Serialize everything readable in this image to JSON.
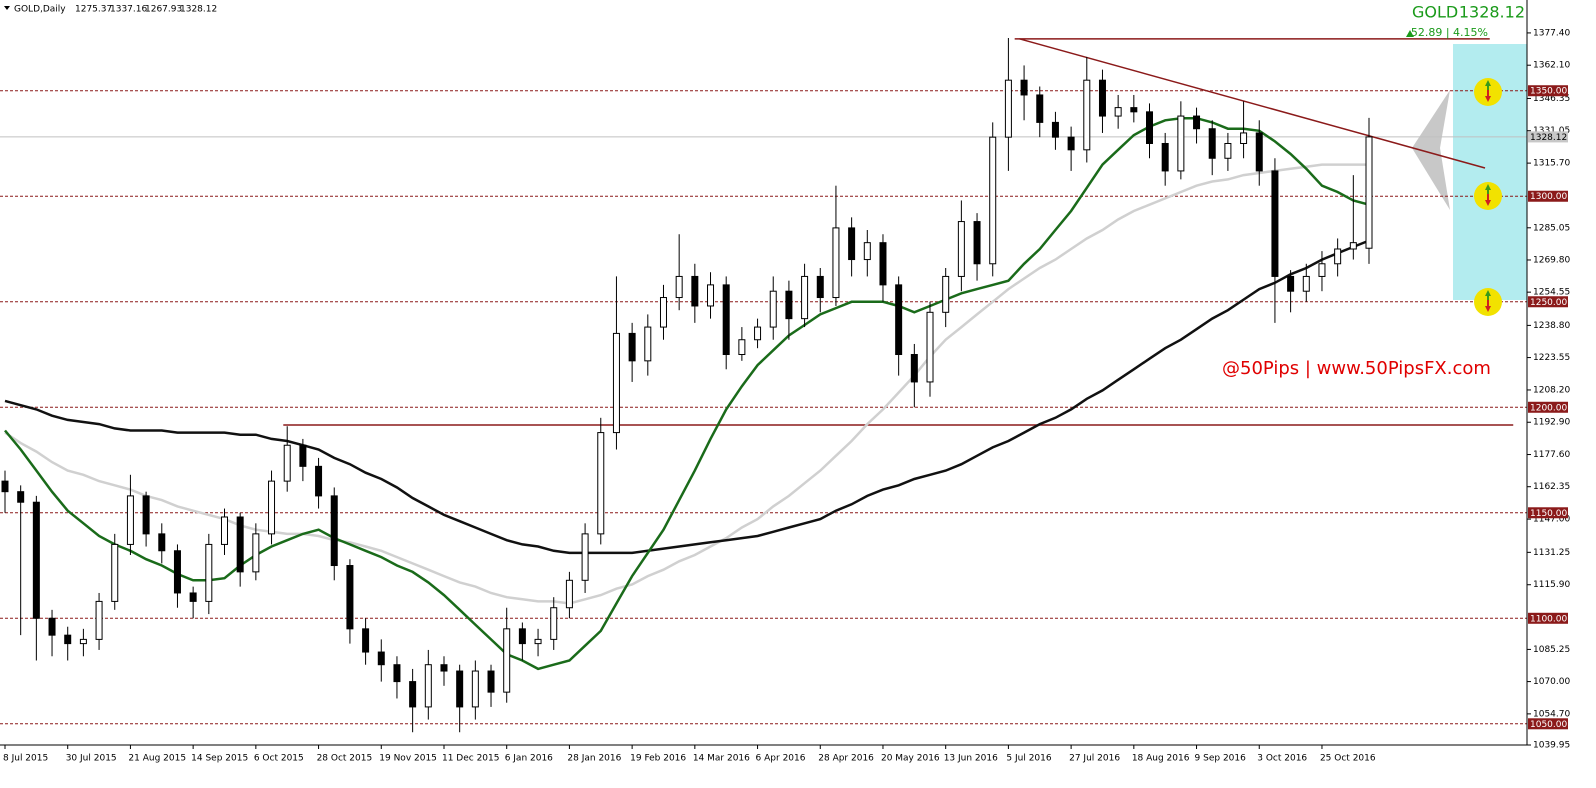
{
  "header": {
    "symbol_timeframe": "GOLD,Daily"
  },
  "quote": {
    "symbol": "GOLD",
    "change_line": "52.89 | 4.15%"
  },
  "watermark": "@50Pips | www.50PipsFX.com",
  "chart_data": {
    "type": "candlestick",
    "categories": [
      "8 Jul 2015",
      null,
      null,
      null,
      "30 Jul 2015",
      null,
      null,
      null,
      "21 Aug 2015",
      null,
      null,
      null,
      "14 Sep 2015",
      null,
      null,
      null,
      "6 Oct 2015",
      null,
      null,
      null,
      "28 Oct 2015",
      null,
      null,
      null,
      "19 Nov 2015",
      null,
      null,
      null,
      "11 Dec 2015",
      null,
      null,
      null,
      "6 Jan 2016",
      null,
      null,
      null,
      "28 Jan 2016",
      null,
      null,
      null,
      "19 Feb 2016",
      null,
      null,
      null,
      "14 Mar 2016",
      null,
      null,
      null,
      "6 Apr 2016",
      null,
      null,
      null,
      "28 Apr 2016",
      null,
      null,
      null,
      "20 May 2016",
      null,
      null,
      null,
      "13 Jun 2016",
      null,
      null,
      null,
      "5 Jul 2016",
      null,
      null,
      null,
      "27 Jul 2016",
      null,
      null,
      null,
      "18 Aug 2016",
      null,
      null,
      null,
      "9 Sep 2016",
      null,
      null,
      null,
      "3 Oct 2016",
      null,
      null,
      null,
      "25 Oct 2016",
      null,
      null,
      null
    ],
    "open": [
      1165,
      1160,
      1155,
      1100,
      1092,
      1088,
      1090,
      1108,
      1135,
      1158,
      1140,
      1132,
      1112,
      1108,
      1135,
      1148,
      1122,
      1140,
      1165,
      1182,
      1172,
      1158,
      1125,
      1095,
      1084,
      1078,
      1070,
      1058,
      1078,
      1075,
      1058,
      1075,
      1065,
      1095,
      1088,
      1090,
      1105,
      1118,
      1140,
      1188,
      1235,
      1222,
      1238,
      1252,
      1262,
      1248,
      1258,
      1225,
      1232,
      1238,
      1255,
      1242,
      1262,
      1252,
      1285,
      1270,
      1278,
      1258,
      1225,
      1212,
      1245,
      1262,
      1288,
      1268,
      1328,
      1355,
      1348,
      1335,
      1328,
      1322,
      1355,
      1338,
      1342,
      1340,
      1325,
      1312,
      1338,
      1332,
      1318,
      1325,
      1330,
      1312,
      1262,
      1255,
      1262,
      1268,
      1275,
      1275.37
    ],
    "high": [
      1170,
      1163,
      1158,
      1104,
      1096,
      1095,
      1112,
      1140,
      1168,
      1160,
      1145,
      1135,
      1115,
      1140,
      1152,
      1150,
      1145,
      1170,
      1191,
      1185,
      1176,
      1162,
      1128,
      1100,
      1090,
      1082,
      1076,
      1085,
      1082,
      1078,
      1080,
      1078,
      1105,
      1098,
      1095,
      1110,
      1122,
      1145,
      1195,
      1262,
      1240,
      1244,
      1258,
      1282,
      1268,
      1264,
      1262,
      1238,
      1242,
      1262,
      1260,
      1268,
      1266,
      1305,
      1290,
      1284,
      1282,
      1262,
      1230,
      1250,
      1266,
      1298,
      1292,
      1335,
      1375,
      1362,
      1352,
      1340,
      1333,
      1366,
      1360,
      1348,
      1348,
      1344,
      1330,
      1345,
      1342,
      1336,
      1330,
      1345,
      1336,
      1318,
      1265,
      1268,
      1274,
      1280,
      1310,
      1337.16
    ],
    "low": [
      1150,
      1092,
      1080,
      1082,
      1080,
      1082,
      1085,
      1104,
      1130,
      1134,
      1126,
      1105,
      1100,
      1102,
      1130,
      1115,
      1118,
      1135,
      1160,
      1165,
      1152,
      1118,
      1088,
      1078,
      1070,
      1062,
      1046,
      1052,
      1068,
      1046,
      1052,
      1058,
      1060,
      1080,
      1082,
      1085,
      1100,
      1112,
      1135,
      1180,
      1212,
      1215,
      1232,
      1246,
      1240,
      1242,
      1218,
      1222,
      1228,
      1232,
      1232,
      1238,
      1245,
      1248,
      1262,
      1262,
      1250,
      1215,
      1200,
      1205,
      1238,
      1255,
      1260,
      1262,
      1312,
      1336,
      1328,
      1322,
      1312,
      1316,
      1330,
      1332,
      1335,
      1318,
      1305,
      1308,
      1325,
      1310,
      1312,
      1318,
      1305,
      1240,
      1245,
      1250,
      1255,
      1262,
      1270,
      1267.93
    ],
    "close": [
      1160,
      1155,
      1100,
      1092,
      1088,
      1090,
      1108,
      1135,
      1158,
      1140,
      1132,
      1112,
      1108,
      1135,
      1148,
      1122,
      1140,
      1165,
      1182,
      1172,
      1158,
      1125,
      1095,
      1084,
      1078,
      1070,
      1058,
      1078,
      1075,
      1058,
      1075,
      1065,
      1095,
      1088,
      1090,
      1105,
      1118,
      1140,
      1188,
      1235,
      1222,
      1238,
      1252,
      1262,
      1248,
      1258,
      1225,
      1232,
      1238,
      1255,
      1242,
      1262,
      1252,
      1285,
      1270,
      1278,
      1258,
      1225,
      1212,
      1245,
      1262,
      1288,
      1268,
      1328,
      1355,
      1348,
      1335,
      1328,
      1322,
      1355,
      1338,
      1342,
      1340,
      1325,
      1312,
      1338,
      1332,
      1318,
      1325,
      1330,
      1312,
      1262,
      1255,
      1262,
      1268,
      1275,
      1278,
      1328.12
    ],
    "moving_averages": [
      {
        "color": "#d0d0d0",
        "values": [
          1188,
          1183,
          1179,
          1174,
          1170,
          1168,
          1165,
          1163,
          1161,
          1158,
          1156,
          1153,
          1151,
          1149,
          1147,
          1144,
          1142,
          1141,
          1140,
          1140,
          1139,
          1137,
          1136,
          1134,
          1132,
          1129,
          1126,
          1123,
          1120,
          1117,
          1115,
          1112,
          1110,
          1109,
          1108,
          1108,
          1107,
          1109,
          1111,
          1114,
          1116,
          1120,
          1123,
          1127,
          1130,
          1134,
          1138,
          1143,
          1147,
          1153,
          1158,
          1164,
          1170,
          1177,
          1184,
          1192,
          1199,
          1207,
          1215,
          1224,
          1232,
          1238,
          1244,
          1250,
          1256,
          1261,
          1266,
          1270,
          1275,
          1280,
          1284,
          1289,
          1293,
          1296,
          1299,
          1302,
          1305,
          1307,
          1308,
          1310,
          1311,
          1312,
          1313,
          1314,
          1315,
          1315,
          1315,
          1315
        ]
      },
      {
        "color": "#111111",
        "values": [
          1203,
          1201,
          1199,
          1196,
          1194,
          1193,
          1192,
          1190,
          1189,
          1189,
          1189,
          1188,
          1188,
          1188,
          1188,
          1187,
          1187,
          1185,
          1184,
          1182,
          1180,
          1176,
          1173,
          1169,
          1166,
          1162,
          1157,
          1153,
          1149,
          1146,
          1143,
          1140,
          1137,
          1135,
          1134,
          1132,
          1131,
          1131,
          1131,
          1131,
          1131,
          1132,
          1133,
          1134,
          1135,
          1136,
          1137,
          1138,
          1139,
          1141,
          1143,
          1145,
          1147,
          1151,
          1154,
          1158,
          1161,
          1163,
          1166,
          1168,
          1170,
          1173,
          1177,
          1181,
          1184,
          1188,
          1192,
          1195,
          1199,
          1204,
          1208,
          1213,
          1218,
          1223,
          1228,
          1232,
          1237,
          1242,
          1246,
          1251,
          1256,
          1259,
          1263,
          1266,
          1270,
          1273,
          1276,
          1279
        ]
      },
      {
        "color": "#1a6b1a",
        "values": [
          1189,
          1180,
          1170,
          1160,
          1151,
          1145,
          1139,
          1135,
          1132,
          1128,
          1125,
          1121,
          1118,
          1118,
          1119,
          1125,
          1130,
          1134,
          1137,
          1140,
          1142,
          1138,
          1135,
          1132,
          1129,
          1125,
          1122,
          1117,
          1111,
          1104,
          1097,
          1090,
          1083,
          1080,
          1076,
          1078,
          1080,
          1087,
          1094,
          1107,
          1120,
          1131,
          1142,
          1156,
          1170,
          1185,
          1199,
          1210,
          1220,
          1227,
          1234,
          1239,
          1244,
          1247,
          1250,
          1250,
          1250,
          1248,
          1245,
          1248,
          1251,
          1254,
          1256,
          1258,
          1260,
          1268,
          1275,
          1284,
          1293,
          1304,
          1315,
          1322,
          1329,
          1333,
          1336,
          1337,
          1337,
          1335,
          1332,
          1332,
          1331,
          1326,
          1320,
          1313,
          1305,
          1302,
          1298,
          1296
        ]
      }
    ],
    "levels": [
      {
        "value": 1350,
        "label": "1350.00"
      },
      {
        "value": 1300,
        "label": "1300.00"
      },
      {
        "value": 1250,
        "label": "1250.00"
      },
      {
        "value": 1200,
        "label": "1200.00"
      },
      {
        "value": 1150,
        "label": "1150.00"
      },
      {
        "value": 1100,
        "label": "1100.00"
      },
      {
        "value": 1050,
        "label": "1050.00"
      }
    ],
    "level_color": "#8b1a1a",
    "trendlines": [
      {
        "from": [
          64.4,
          1374.6
        ],
        "to": [
          94.7,
          1374.6
        ]
      },
      {
        "from": [
          64.7,
          1374.6
        ],
        "to": [
          94.4,
          1313.4
        ]
      },
      {
        "from": [
          17.75,
          1191.6
        ],
        "to": [
          96.2,
          1191.6
        ]
      }
    ],
    "ylim": [
      1039.95,
      1393.0
    ],
    "yticks": [
      {
        "value": 1377.4,
        "label": "1377.40"
      },
      {
        "value": 1362.1,
        "label": "1362.10"
      },
      {
        "value": 1346.35,
        "label": "1346.35"
      },
      {
        "value": 1331.05,
        "label": "1331.05"
      },
      {
        "value": 1315.7,
        "label": "1315.70"
      },
      {
        "value": 1285.05,
        "label": "1285.05"
      },
      {
        "value": 1269.8,
        "label": "1269.80"
      },
      {
        "value": 1254.55,
        "label": "1254.55"
      },
      {
        "value": 1238.8,
        "label": "1238.80"
      },
      {
        "value": 1223.55,
        "label": "1223.55"
      },
      {
        "value": 1208.2,
        "label": "1208.20"
      },
      {
        "value": 1192.9,
        "label": "1192.90"
      },
      {
        "value": 1177.6,
        "label": "1177.60"
      },
      {
        "value": 1162.35,
        "label": "1162.35"
      },
      {
        "value": 1147,
        "label": "1147.00"
      },
      {
        "value": 1131.25,
        "label": "1131.25"
      },
      {
        "value": 1115.9,
        "label": "1115.90"
      },
      {
        "value": 1085.25,
        "label": "1085.25"
      },
      {
        "value": 1070,
        "label": "1070.00"
      },
      {
        "value": 1054.7,
        "label": "1054.70"
      },
      {
        "value": 1039.95,
        "label": "1039.95"
      }
    ],
    "grid": false
  }
}
